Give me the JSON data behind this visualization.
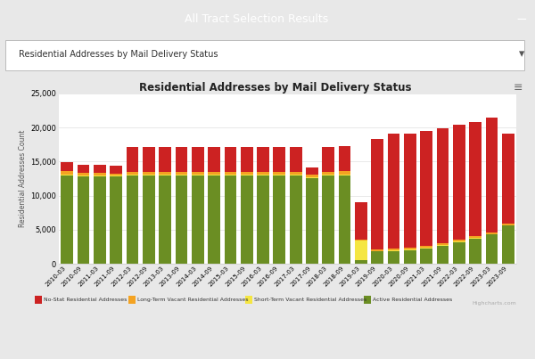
{
  "title": "Residential Addresses by Mail Delivery Status",
  "ylabel": "Residential Addresses Count",
  "header_text": "All Tract Selection Results",
  "dropdown_text": "Residential Addresses by Mail Delivery Status",
  "page_bg": "#e8e8e8",
  "chart_area_bg": "#ffffff",
  "header_bg": "#2e9db3",
  "dropdown_bg": "#ffffff",
  "ylim": [
    0,
    25000
  ],
  "yticks": [
    0,
    5000,
    10000,
    15000,
    20000,
    25000
  ],
  "categories": [
    "2010-03",
    "2010-09",
    "2011-03",
    "2011-09",
    "2012-03",
    "2012-09",
    "2013-03",
    "2013-09",
    "2014-03",
    "2014-09",
    "2015-03",
    "2015-09",
    "2016-03",
    "2016-09",
    "2017-03",
    "2017-09",
    "2018-03",
    "2018-09",
    "2019-03",
    "2019-09",
    "2020-03",
    "2020-09",
    "2021-03",
    "2021-09",
    "2022-03",
    "2022-09",
    "2023-03",
    "2023-09"
  ],
  "series": {
    "active": {
      "label": "Active Residential Addresses",
      "color": "#6b8e23",
      "values": [
        13000,
        12800,
        12800,
        12800,
        12900,
        12900,
        12900,
        12900,
        12900,
        12900,
        12900,
        12900,
        12900,
        12900,
        12900,
        12500,
        12900,
        13000,
        600,
        1800,
        1900,
        2000,
        2300,
        2700,
        3200,
        3700,
        4300,
        5600
      ]
    },
    "short_term": {
      "label": "Short-Term Vacant Residential Addresses",
      "color": "#f5e642",
      "values": [
        150,
        150,
        150,
        150,
        150,
        150,
        150,
        150,
        150,
        150,
        150,
        150,
        150,
        150,
        150,
        150,
        150,
        150,
        2800,
        100,
        100,
        100,
        100,
        100,
        100,
        100,
        100,
        100
      ]
    },
    "long_term": {
      "label": "Long-Term Vacant Residential Addresses",
      "color": "#f4a322",
      "values": [
        400,
        400,
        400,
        300,
        400,
        400,
        400,
        400,
        400,
        400,
        400,
        400,
        400,
        400,
        400,
        400,
        400,
        400,
        200,
        250,
        250,
        250,
        250,
        250,
        250,
        250,
        250,
        250
      ]
    },
    "no_stat": {
      "label": "No-Stat Residential Addresses",
      "color": "#cc2222",
      "values": [
        1400,
        1200,
        1200,
        1100,
        3700,
        3700,
        3700,
        3700,
        3700,
        3700,
        3700,
        3700,
        3700,
        3700,
        3700,
        1100,
        3700,
        3700,
        5500,
        16200,
        16800,
        16800,
        16800,
        16800,
        16800,
        16800,
        16800,
        13200
      ]
    }
  },
  "legend_items": [
    {
      "label": "No-Stat Residential Addresses",
      "color": "#cc2222"
    },
    {
      "label": "Long-Term Vacant Residential Addresses",
      "color": "#f4a322"
    },
    {
      "label": "Short-Term Vacant Residential Addresses",
      "color": "#f5e642"
    },
    {
      "label": "Active Residential Addresses",
      "color": "#6b8e23"
    }
  ],
  "highcharts_text": "Highcharts.com"
}
